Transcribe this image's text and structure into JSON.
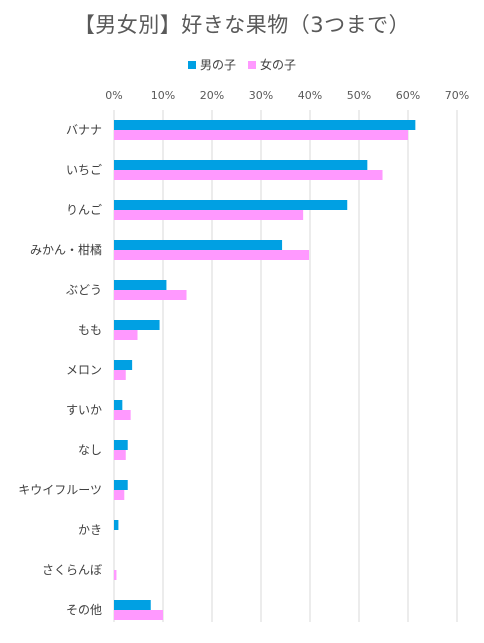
{
  "chart_data": {
    "type": "bar",
    "orientation": "horizontal",
    "title": "【男女別】好きな果物（3つまで）",
    "xlabel": "",
    "ylabel": "",
    "x_ticks": [
      "0%",
      "10%",
      "20%",
      "30%",
      "40%",
      "50%",
      "60%",
      "70%"
    ],
    "xlim": [
      0,
      70
    ],
    "grid": "vertical",
    "legend": "top",
    "categories": [
      "バナナ",
      "いちご",
      "りんご",
      "みかん・柑橘",
      "ぶどう",
      "もも",
      "メロン",
      "すいか",
      "なし",
      "キウイフルーツ",
      "かき",
      "さくらんぼ",
      "その他"
    ],
    "series": [
      {
        "name": "男の子",
        "color": "#00A0E3",
        "values": [
          61.5,
          51.7,
          47.6,
          34.3,
          10.7,
          9.3,
          3.7,
          1.7,
          2.8,
          2.8,
          0.9,
          0,
          7.5
        ]
      },
      {
        "name": "女の子",
        "color": "#FF99FF",
        "values": [
          60.0,
          54.8,
          38.6,
          39.8,
          14.8,
          4.8,
          2.4,
          3.4,
          2.4,
          2.1,
          0,
          0.5,
          10.0
        ]
      }
    ]
  }
}
